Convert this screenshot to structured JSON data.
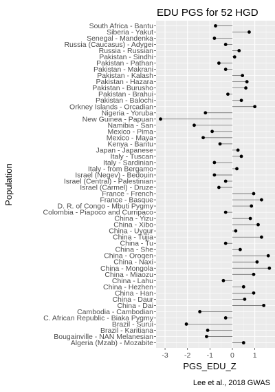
{
  "chart_data": {
    "type": "scatter",
    "title": "EDU PGS for 52 HGD",
    "xlabel": "PGS_EDU_Z",
    "ylabel": "Population",
    "caption": "Lee et al., 2018 GWAS",
    "xlim": [
      -3.4,
      1.9
    ],
    "xticks": [
      -3,
      -2,
      -1,
      0,
      1
    ],
    "grid": true,
    "baseline": 0,
    "categories": [
      "South Africa - Bantu",
      "Siberia - Yakut",
      "Senegal - Mandenka",
      "Russia (Caucasus) - Adygei",
      "Russia - Russian",
      "Pakistan - Sindhi",
      "Pakistan - Pathan",
      "Pakistan - Makrani",
      "Pakistan - Kalash",
      "Pakistan - Hazara",
      "Pakistan - Burusho",
      "Pakistan - Brahui",
      "Pakistan - Balochi",
      "Orkney Islands - Orcadian",
      "Nigeria - Yoruba",
      "New Guinea - Papuan",
      "Namibia - San",
      "Mexico - Pima",
      "Mexico - Maya",
      "Kenya - Bantu",
      "Japan - Japanese",
      "Italy - Tuscan",
      "Italy - Sardinian",
      "Italy - from Bergamo",
      "Israel (Negev) - Bedouin",
      "Israel (Central) - Palestinian",
      "Israel (Carmel) - Druze",
      "France - French",
      "France - Basque",
      "D. R. of Congo - Mbuti Pygmy",
      "Colombia - Piapoco and Curripaco",
      "China - Yizu",
      "China - Xibo",
      "China - Uygur",
      "China - Tujia",
      "China - Tu",
      "China - She",
      "China - Oroqen",
      "China - Naxi",
      "China - Mongola",
      "China - Miaozu",
      "China - Lahu",
      "China - Hezhen",
      "China - Han",
      "China - Daur",
      "China - Dai",
      "Cambodia - Cambodian",
      "C. African Republic - Biaka Pygmy",
      "Brazil - Surui",
      "Brazil - Karitiana",
      "Bougainville - NAN Melanesian",
      "Algeria (Mzab) - Mozabite"
    ],
    "values": [
      -0.75,
      0.75,
      -0.8,
      -0.3,
      0.3,
      0.1,
      -0.6,
      -0.3,
      0.45,
      0.65,
      0.6,
      -0.2,
      0.4,
      1.0,
      -1.2,
      -3.2,
      -1.7,
      -0.9,
      -1.3,
      -0.55,
      0.25,
      0.4,
      -0.8,
      0.2,
      -0.8,
      -0.3,
      -0.6,
      0.95,
      1.3,
      0.85,
      -0.3,
      0.8,
      1.15,
      0.15,
      1.3,
      -0.3,
      0.35,
      1.6,
      1.1,
      1.65,
      0.95,
      -0.4,
      0.5,
      0.95,
      0.55,
      1.4,
      -1.45,
      -0.3,
      -2.05,
      -1.1,
      -1.15,
      0.5
    ]
  }
}
